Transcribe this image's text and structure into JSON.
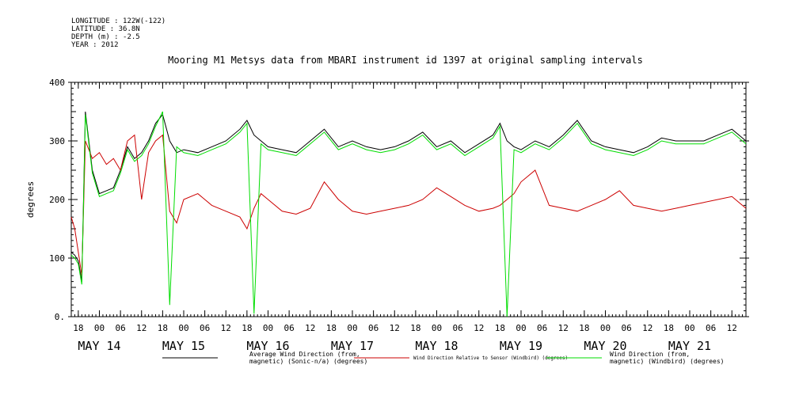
{
  "metadata": [
    "LONGITUDE : 122W(-122)",
    "LATITUDE : 36.8N",
    "DEPTH (m) : -2.5",
    "YEAR : 2012"
  ],
  "chart_data": {
    "type": "line",
    "title": "Mooring M1 Metsys data from MBARI instrument id 1397 at original sampling intervals",
    "ylabel": "degrees",
    "xlabel": "",
    "ylim": [
      0,
      400
    ],
    "yticks": [
      0,
      100,
      200,
      300,
      400
    ],
    "ytick_labels": [
      "0.",
      "100",
      "200",
      "300",
      "400"
    ],
    "xlim_hours": [
      "2012-05-13 16:00",
      "2012-05-21 16:00"
    ],
    "hour_ticks": [
      "18",
      "00",
      "06",
      "12",
      "18",
      "00",
      "06",
      "12",
      "18",
      "00",
      "06",
      "12",
      "18",
      "00",
      "06",
      "12",
      "18",
      "00",
      "06",
      "12",
      "18",
      "00",
      "06",
      "12",
      "18",
      "00",
      "06",
      "12",
      "18",
      "00",
      "06",
      "12"
    ],
    "day_labels": [
      "MAY 14",
      "MAY 15",
      "MAY 16",
      "MAY 17",
      "MAY 18",
      "MAY 19",
      "MAY 20",
      "MAY 21"
    ],
    "day_label_dates": [
      "2012-05-14",
      "2012-05-15",
      "2012-05-16",
      "2012-05-17",
      "2012-05-18",
      "2012-05-19",
      "2012-05-20",
      "2012-05-21"
    ],
    "grid": false,
    "legend_position": "bottom",
    "series": [
      {
        "name": "Average Wind Direction (from, magnetic) (Sonic-n/a) (degrees)",
        "legend_lines": [
          "Average Wind Direction (from,",
          "magnetic) (Sonic-n/a) (degrees)"
        ],
        "color": "#000000",
        "x": [
          "2012-05-13 16:00",
          "2012-05-13 17:00",
          "2012-05-13 18:00",
          "2012-05-13 19:00",
          "2012-05-13 20:00",
          "2012-05-13 22:00",
          "2012-05-14 00:00",
          "2012-05-14 02:00",
          "2012-05-14 04:00",
          "2012-05-14 06:00",
          "2012-05-14 08:00",
          "2012-05-14 10:00",
          "2012-05-14 12:00",
          "2012-05-14 14:00",
          "2012-05-14 16:00",
          "2012-05-14 18:00",
          "2012-05-14 20:00",
          "2012-05-14 22:00",
          "2012-05-15 00:00",
          "2012-05-15 04:00",
          "2012-05-15 08:00",
          "2012-05-15 12:00",
          "2012-05-15 16:00",
          "2012-05-15 18:00",
          "2012-05-15 20:00",
          "2012-05-15 22:00",
          "2012-05-16 00:00",
          "2012-05-16 04:00",
          "2012-05-16 08:00",
          "2012-05-16 12:00",
          "2012-05-16 16:00",
          "2012-05-16 20:00",
          "2012-05-17 00:00",
          "2012-05-17 04:00",
          "2012-05-17 08:00",
          "2012-05-17 12:00",
          "2012-05-17 16:00",
          "2012-05-17 20:00",
          "2012-05-18 00:00",
          "2012-05-18 04:00",
          "2012-05-18 08:00",
          "2012-05-18 12:00",
          "2012-05-18 16:00",
          "2012-05-18 18:00",
          "2012-05-18 20:00",
          "2012-05-18 22:00",
          "2012-05-19 00:00",
          "2012-05-19 04:00",
          "2012-05-19 08:00",
          "2012-05-19 12:00",
          "2012-05-19 16:00",
          "2012-05-19 20:00",
          "2012-05-20 00:00",
          "2012-05-20 04:00",
          "2012-05-20 08:00",
          "2012-05-20 12:00",
          "2012-05-20 16:00",
          "2012-05-20 20:00",
          "2012-05-21 00:00",
          "2012-05-21 04:00",
          "2012-05-21 08:00",
          "2012-05-21 12:00",
          "2012-05-21 16:00"
        ],
        "y": [
          110,
          105,
          95,
          60,
          350,
          250,
          210,
          215,
          220,
          250,
          290,
          270,
          280,
          300,
          330,
          345,
          300,
          280,
          285,
          280,
          290,
          300,
          320,
          335,
          310,
          300,
          290,
          285,
          280,
          300,
          320,
          290,
          300,
          290,
          285,
          290,
          300,
          315,
          290,
          300,
          280,
          295,
          310,
          330,
          300,
          290,
          285,
          300,
          290,
          310,
          335,
          300,
          290,
          285,
          280,
          290,
          305,
          300,
          300,
          300,
          310,
          320,
          300
        ]
      },
      {
        "name": "Wind Direction Relative to Sensor (Windbird) (degrees)",
        "legend_lines": [
          "Wind Direction Relative to Sensor (Windbird) (degrees)"
        ],
        "color": "#cc0000",
        "x": [
          "2012-05-13 16:00",
          "2012-05-13 17:00",
          "2012-05-13 18:00",
          "2012-05-13 19:00",
          "2012-05-13 20:00",
          "2012-05-13 22:00",
          "2012-05-14 00:00",
          "2012-05-14 02:00",
          "2012-05-14 04:00",
          "2012-05-14 06:00",
          "2012-05-14 08:00",
          "2012-05-14 10:00",
          "2012-05-14 12:00",
          "2012-05-14 14:00",
          "2012-05-14 16:00",
          "2012-05-14 18:00",
          "2012-05-14 20:00",
          "2012-05-14 22:00",
          "2012-05-15 00:00",
          "2012-05-15 04:00",
          "2012-05-15 08:00",
          "2012-05-15 12:00",
          "2012-05-15 16:00",
          "2012-05-15 18:00",
          "2012-05-15 20:00",
          "2012-05-15 22:00",
          "2012-05-16 00:00",
          "2012-05-16 04:00",
          "2012-05-16 08:00",
          "2012-05-16 12:00",
          "2012-05-16 16:00",
          "2012-05-16 20:00",
          "2012-05-17 00:00",
          "2012-05-17 04:00",
          "2012-05-17 08:00",
          "2012-05-17 12:00",
          "2012-05-17 16:00",
          "2012-05-17 20:00",
          "2012-05-18 00:00",
          "2012-05-18 04:00",
          "2012-05-18 08:00",
          "2012-05-18 12:00",
          "2012-05-18 16:00",
          "2012-05-18 18:00",
          "2012-05-18 20:00",
          "2012-05-18 22:00",
          "2012-05-19 00:00",
          "2012-05-19 04:00",
          "2012-05-19 08:00",
          "2012-05-19 12:00",
          "2012-05-19 16:00",
          "2012-05-19 20:00",
          "2012-05-20 00:00",
          "2012-05-20 04:00",
          "2012-05-20 08:00",
          "2012-05-20 12:00",
          "2012-05-20 16:00",
          "2012-05-20 20:00",
          "2012-05-21 00:00",
          "2012-05-21 04:00",
          "2012-05-21 08:00",
          "2012-05-21 12:00",
          "2012-05-21 16:00"
        ],
        "y": [
          170,
          150,
          110,
          70,
          300,
          270,
          280,
          260,
          270,
          250,
          300,
          310,
          200,
          280,
          300,
          310,
          180,
          160,
          200,
          210,
          190,
          180,
          170,
          150,
          185,
          210,
          200,
          180,
          175,
          185,
          230,
          200,
          180,
          175,
          180,
          185,
          190,
          200,
          220,
          205,
          190,
          180,
          185,
          190,
          200,
          210,
          230,
          250,
          190,
          185,
          180,
          190,
          200,
          215,
          190,
          185,
          180,
          185,
          190,
          195,
          200,
          205,
          185
        ]
      },
      {
        "name": "Wind Direction (from, magnetic) (Windbird) (degrees)",
        "legend_lines": [
          "Wind Direction (from,",
          "magnetic) (Windbird) (degrees)"
        ],
        "color": "#00dd00",
        "x": [
          "2012-05-13 16:00",
          "2012-05-13 17:00",
          "2012-05-13 18:00",
          "2012-05-13 19:00",
          "2012-05-13 20:00",
          "2012-05-13 22:00",
          "2012-05-14 00:00",
          "2012-05-14 02:00",
          "2012-05-14 04:00",
          "2012-05-14 06:00",
          "2012-05-14 08:00",
          "2012-05-14 10:00",
          "2012-05-14 12:00",
          "2012-05-14 14:00",
          "2012-05-14 16:00",
          "2012-05-14 18:00",
          "2012-05-14 20:00",
          "2012-05-14 22:00",
          "2012-05-15 00:00",
          "2012-05-15 04:00",
          "2012-05-15 08:00",
          "2012-05-15 12:00",
          "2012-05-15 16:00",
          "2012-05-15 18:00",
          "2012-05-15 20:00",
          "2012-05-15 22:00",
          "2012-05-16 00:00",
          "2012-05-16 04:00",
          "2012-05-16 08:00",
          "2012-05-16 12:00",
          "2012-05-16 16:00",
          "2012-05-16 20:00",
          "2012-05-17 00:00",
          "2012-05-17 04:00",
          "2012-05-17 08:00",
          "2012-05-17 12:00",
          "2012-05-17 16:00",
          "2012-05-17 20:00",
          "2012-05-18 00:00",
          "2012-05-18 04:00",
          "2012-05-18 08:00",
          "2012-05-18 12:00",
          "2012-05-18 16:00",
          "2012-05-18 18:00",
          "2012-05-18 20:00",
          "2012-05-18 22:00",
          "2012-05-19 00:00",
          "2012-05-19 04:00",
          "2012-05-19 08:00",
          "2012-05-19 12:00",
          "2012-05-19 16:00",
          "2012-05-19 20:00",
          "2012-05-20 00:00",
          "2012-05-20 04:00",
          "2012-05-20 08:00",
          "2012-05-20 12:00",
          "2012-05-20 16:00",
          "2012-05-20 20:00",
          "2012-05-21 00:00",
          "2012-05-21 04:00",
          "2012-05-21 08:00",
          "2012-05-21 12:00",
          "2012-05-21 16:00"
        ],
        "y": [
          105,
          100,
          90,
          55,
          345,
          245,
          205,
          210,
          215,
          245,
          285,
          265,
          275,
          295,
          325,
          350,
          20,
          290,
          280,
          275,
          285,
          295,
          315,
          330,
          5,
          295,
          285,
          280,
          275,
          295,
          315,
          285,
          295,
          285,
          280,
          285,
          295,
          310,
          285,
          295,
          275,
          290,
          305,
          325,
          0,
          285,
          280,
          295,
          285,
          305,
          330,
          295,
          285,
          280,
          275,
          285,
          300,
          295,
          295,
          295,
          305,
          315,
          295
        ]
      }
    ]
  }
}
